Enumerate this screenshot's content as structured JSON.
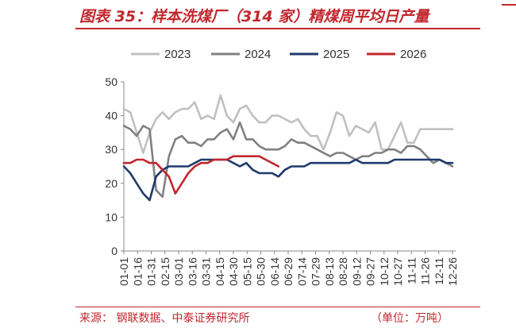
{
  "header": {
    "title": "图表 35：样本洗煤厂（314 家）精煤周平均日产量"
  },
  "footer": {
    "source": "来源：  钢联数据、中泰证券研究所",
    "unit": "（单位：万吨）"
  },
  "chart_data": {
    "type": "line",
    "title": "",
    "xlabel": "",
    "ylabel": "",
    "ylim": [
      0,
      50
    ],
    "yticks": [
      "0",
      "10",
      "20",
      "30",
      "40",
      "50"
    ],
    "xticks": [
      "01-01",
      "01-16",
      "01-31",
      "02-15",
      "03-01",
      "03-16",
      "03-31",
      "04-15",
      "04-30",
      "05-15",
      "05-30",
      "06-14",
      "06-29",
      "07-14",
      "07-29",
      "08-13",
      "08-28",
      "09-12",
      "09-27",
      "10-12",
      "10-27",
      "11-11",
      "11-26",
      "12-11",
      "12-26"
    ],
    "legend_position": "top",
    "grid": false,
    "series": [
      {
        "name": "2023",
        "color": "#c0c0c0",
        "values": [
          42,
          41,
          35,
          29,
          35,
          39,
          41,
          39,
          41,
          42,
          42,
          44,
          39,
          40,
          39,
          46,
          40,
          38,
          42,
          43,
          40,
          38,
          38,
          40,
          40,
          39,
          38,
          39,
          36,
          34,
          34,
          30,
          35,
          41,
          40,
          34,
          37,
          36,
          35,
          38,
          30,
          30,
          34,
          38,
          32,
          32,
          36,
          36,
          36,
          36,
          36,
          36
        ]
      },
      {
        "name": "2024",
        "color": "#808080",
        "values": [
          37,
          36,
          34,
          37,
          36,
          18,
          16,
          28,
          33,
          34,
          32,
          32,
          31,
          33,
          33,
          35,
          36,
          33,
          38,
          33,
          33,
          31,
          30,
          30,
          30,
          31,
          33,
          32,
          32,
          31,
          30,
          29,
          28,
          29,
          29,
          28,
          27,
          28,
          28,
          29,
          29,
          30,
          30,
          29,
          31,
          31,
          30,
          28,
          26,
          27,
          26,
          25
        ]
      },
      {
        "name": "2025",
        "color": "#1f3a6b",
        "values": [
          25,
          23,
          20,
          17,
          15,
          22,
          24,
          25,
          25,
          25,
          25,
          26,
          27,
          27,
          27,
          27,
          27,
          26,
          25,
          26,
          24,
          23,
          23,
          23,
          22,
          24,
          25,
          25,
          25,
          26,
          26,
          26,
          26,
          26,
          26,
          26,
          27,
          26,
          26,
          26,
          26,
          26,
          27,
          27,
          27,
          27,
          27,
          27,
          27,
          27,
          26,
          26
        ]
      },
      {
        "name": "2026",
        "color": "#c1272d",
        "values": [
          26,
          26,
          27,
          27,
          26,
          26,
          24,
          22,
          17,
          20,
          23,
          25,
          26,
          26,
          27,
          27,
          27,
          28,
          28,
          28,
          28,
          28,
          27,
          26,
          25
        ]
      }
    ]
  }
}
